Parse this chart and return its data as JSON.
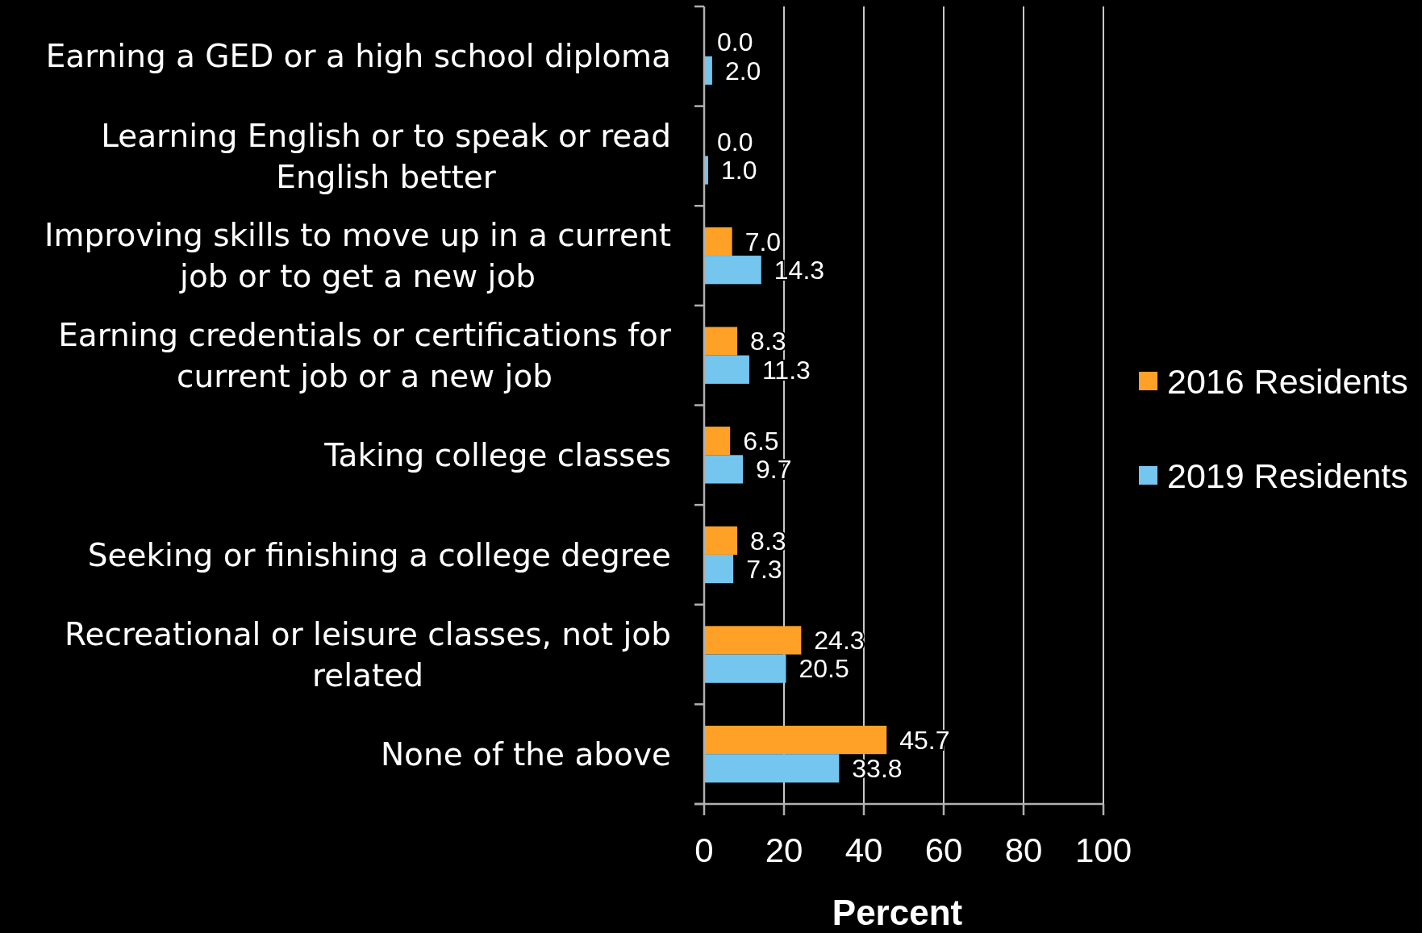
{
  "chart_data": {
    "type": "bar",
    "orientation": "horizontal",
    "categories": [
      "Earning a GED or a high school diploma",
      "Learning English or to speak or read English better",
      "Improving skills to move up in a current job or to get a new job",
      "Earning credentials or certifications for current job or a new job",
      "Taking college classes",
      "Seeking or finishing a college degree",
      "Recreational or leisure classes, not job related",
      "None of the above"
    ],
    "series": [
      {
        "name": "2016 Residents",
        "color": "#ffa126",
        "values": [
          0,
          0,
          7,
          8.3,
          6.5,
          8.3,
          24.3,
          45.7
        ],
        "value_labels": [
          "0.0",
          "0.0",
          "7.0",
          "8.3",
          "6.5",
          "8.3",
          "24.3",
          "45.7"
        ]
      },
      {
        "name": "2019 Residents",
        "color": "#75c6ef",
        "values": [
          2,
          1,
          14.3,
          11.3,
          9.7,
          7.3,
          20.5,
          33.8
        ],
        "value_labels": [
          "2.0",
          "1.0",
          "14.3",
          "11.3",
          "9.7",
          "7.3",
          "20.5",
          "33.8"
        ]
      }
    ],
    "xlabel": "Percent",
    "xlim": [
      0,
      100
    ],
    "xticks": [
      0,
      20,
      40,
      60,
      80,
      100
    ],
    "grid": "x",
    "legend": "right"
  }
}
